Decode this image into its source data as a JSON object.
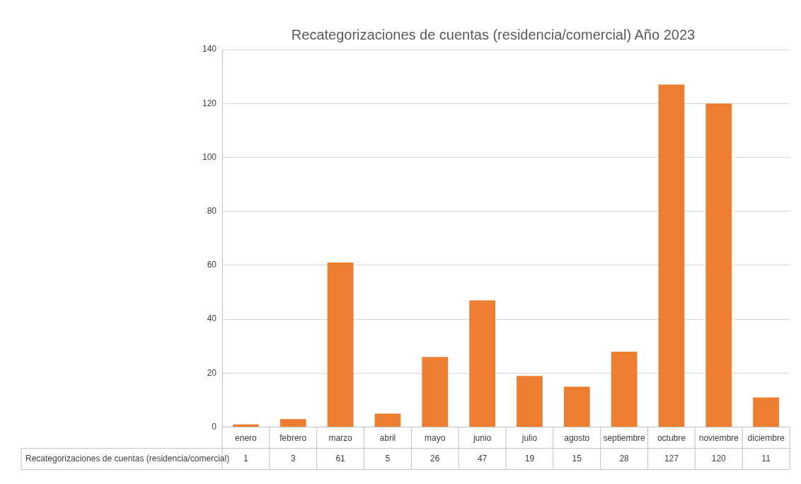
{
  "chart_data": {
    "type": "bar",
    "title": "Recategorizaciones de cuentas (residencia/comercial) Año 2023",
    "categories": [
      "enero",
      "febrero",
      "marzo",
      "abril",
      "mayo",
      "junio",
      "julio",
      "agosto",
      "septiembre",
      "octubre",
      "noviembre",
      "diciembre"
    ],
    "series": [
      {
        "name": "Recategorizaciones de cuentas (residencia/comercial)",
        "color": "#ed7d31",
        "values": [
          1,
          3,
          61,
          5,
          26,
          47,
          19,
          15,
          28,
          127,
          120,
          11
        ]
      }
    ],
    "ylim": [
      0,
      140
    ],
    "yticks": [
      0,
      20,
      40,
      60,
      80,
      100,
      120,
      140
    ],
    "grid": "y",
    "data_labels": true
  }
}
